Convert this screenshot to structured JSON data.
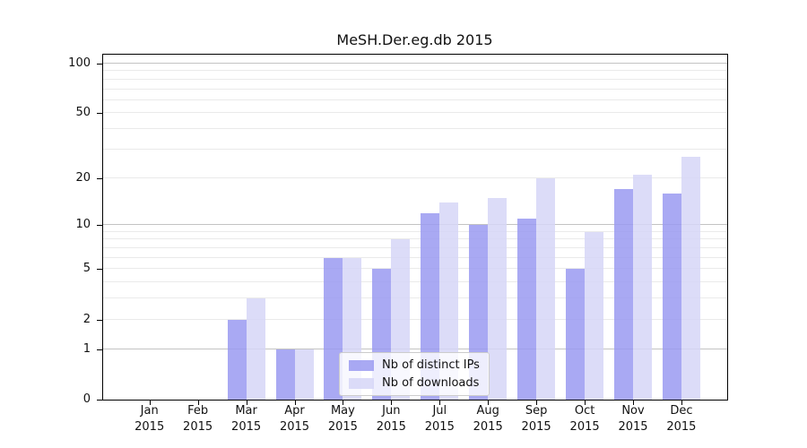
{
  "page": {
    "background": "#ffffff"
  },
  "chart_data": {
    "type": "bar",
    "title": "MeSH.Der.eg.db 2015",
    "categories": [
      "Jan",
      "Feb",
      "Mar",
      "Apr",
      "May",
      "Jun",
      "Jul",
      "Aug",
      "Sep",
      "Oct",
      "Nov",
      "Dec"
    ],
    "x_year": "2015",
    "series": [
      {
        "name": "Nb of distinct IPs",
        "color": "rgb(154,154,241)",
        "values": [
          0,
          0,
          2,
          1,
          6,
          5,
          12,
          10,
          11,
          5,
          17,
          16
        ]
      },
      {
        "name": "Nb of downloads",
        "color": "rgb(214,214,247)",
        "values": [
          0,
          0,
          3,
          1,
          6,
          8,
          14,
          15,
          20,
          9,
          21,
          27
        ]
      }
    ],
    "y_scale": "log10(1+x)",
    "y_ticks": [
      0,
      1,
      2,
      5,
      10,
      20,
      50,
      100
    ],
    "y_major_gridlines": [
      1,
      10,
      100
    ],
    "y_minor_gridlines": [
      2,
      3,
      4,
      5,
      6,
      7,
      8,
      9,
      20,
      30,
      40,
      50,
      60,
      70,
      80,
      90
    ],
    "y_top_value": 113,
    "xlabel": "",
    "ylabel": "",
    "grid": true,
    "legend_position": "lower center inside"
  },
  "colors": {
    "bar_ips": "rgb(154,154,241)",
    "bar_downloads": "rgb(214,214,247)",
    "grid_major": "#c3c3c3",
    "grid_minor": "#eaeaea",
    "frame": "#000000",
    "legend_border": "#cccccc",
    "text": "#111111"
  }
}
